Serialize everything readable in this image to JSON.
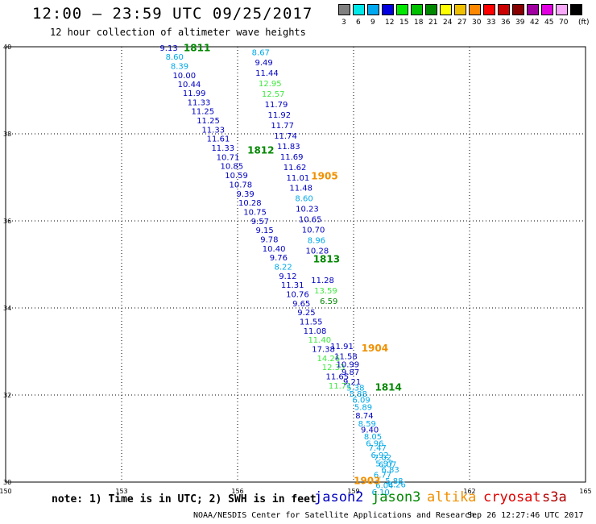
{
  "title": "12:00 – 23:59 UTC 09/25/2017",
  "subtitle": "12 hour collection of altimeter wave heights",
  "legend": {
    "unit": "(ft)",
    "bins": [
      {
        "label": "3",
        "color": "#808080"
      },
      {
        "label": "6",
        "color": "#00e8e8"
      },
      {
        "label": "9",
        "color": "#00a8f0"
      },
      {
        "label": "12",
        "color": "#0000e0"
      },
      {
        "label": "15",
        "color": "#00e800"
      },
      {
        "label": "18",
        "color": "#00c000"
      },
      {
        "label": "21",
        "color": "#008800"
      },
      {
        "label": "24",
        "color": "#ffff00"
      },
      {
        "label": "27",
        "color": "#f0c000"
      },
      {
        "label": "30",
        "color": "#ff8800"
      },
      {
        "label": "33",
        "color": "#ff0000"
      },
      {
        "label": "36",
        "color": "#cc0000"
      },
      {
        "label": "39",
        "color": "#880000"
      },
      {
        "label": "42",
        "color": "#a000a0"
      },
      {
        "label": "45",
        "color": "#e000e0"
      },
      {
        "label": "70",
        "color": "#f8a8f8"
      },
      {
        "label": "",
        "color": "#000000"
      }
    ]
  },
  "map": {
    "lon_range": [
      150,
      165
    ],
    "lat_range": [
      30,
      40
    ],
    "lon_ticks": [
      "150",
      "153",
      "156",
      "159",
      "162",
      "165"
    ],
    "lat_ticks": [
      "30",
      "32",
      "34",
      "36",
      "38",
      "40"
    ],
    "colors": {
      "jason2": "#0000c0",
      "jason3": "#008800",
      "altika": "#f09000",
      "cryosat": "#e00000",
      "s3a": "#b00000",
      "cyan": "#00a8e8",
      "lightgreen": "#40e840"
    },
    "pass_labels": [
      {
        "text": "1811",
        "lon": 154.95,
        "lat": 39.9,
        "color": "jason3"
      },
      {
        "text": "1812",
        "lon": 156.6,
        "lat": 37.55,
        "color": "jason3"
      },
      {
        "text": "1905",
        "lon": 158.25,
        "lat": 36.95,
        "color": "altika"
      },
      {
        "text": "1813",
        "lon": 158.3,
        "lat": 35.05,
        "color": "jason3"
      },
      {
        "text": "1904",
        "lon": 159.55,
        "lat": 33.0,
        "color": "altika"
      },
      {
        "text": "1814",
        "lon": 159.9,
        "lat": 32.1,
        "color": "jason3"
      },
      {
        "text": "1903",
        "lon": 159.35,
        "lat": 29.95,
        "color": "altika"
      }
    ],
    "observations": [
      {
        "v": "9.13",
        "lon": 154.22,
        "lat": 39.91,
        "c": "jason2"
      },
      {
        "v": "8.60",
        "lon": 154.37,
        "lat": 39.7,
        "c": "cyan"
      },
      {
        "v": "8.39",
        "lon": 154.5,
        "lat": 39.49,
        "c": "cyan"
      },
      {
        "v": "10.00",
        "lon": 154.62,
        "lat": 39.28,
        "c": "jason2"
      },
      {
        "v": "10.44",
        "lon": 154.75,
        "lat": 39.07,
        "c": "jason2"
      },
      {
        "v": "11.99",
        "lon": 154.88,
        "lat": 38.87,
        "c": "jason2"
      },
      {
        "v": "11.33",
        "lon": 155.0,
        "lat": 38.66,
        "c": "jason2"
      },
      {
        "v": "11.25",
        "lon": 155.1,
        "lat": 38.45,
        "c": "jason2"
      },
      {
        "v": "11.25",
        "lon": 155.24,
        "lat": 38.24,
        "c": "jason2"
      },
      {
        "v": "11.33",
        "lon": 155.37,
        "lat": 38.03,
        "c": "jason2"
      },
      {
        "v": "11.61",
        "lon": 155.5,
        "lat": 37.82,
        "c": "jason2"
      },
      {
        "v": "11.33",
        "lon": 155.62,
        "lat": 37.61,
        "c": "jason2"
      },
      {
        "v": "10.71",
        "lon": 155.75,
        "lat": 37.4,
        "c": "jason2"
      },
      {
        "v": "10.85",
        "lon": 155.85,
        "lat": 37.19,
        "c": "jason2"
      },
      {
        "v": "10.59",
        "lon": 155.97,
        "lat": 36.98,
        "c": "jason2"
      },
      {
        "v": "10.78",
        "lon": 156.08,
        "lat": 36.77,
        "c": "jason2"
      },
      {
        "v": "9.39",
        "lon": 156.2,
        "lat": 36.56,
        "c": "jason2"
      },
      {
        "v": "10.28",
        "lon": 156.32,
        "lat": 36.35,
        "c": "jason2"
      },
      {
        "v": "10.75",
        "lon": 156.45,
        "lat": 36.14,
        "c": "jason2"
      },
      {
        "v": "9.57",
        "lon": 156.58,
        "lat": 35.93,
        "c": "jason2"
      },
      {
        "v": "9.15",
        "lon": 156.7,
        "lat": 35.72,
        "c": "jason2"
      },
      {
        "v": "9.78",
        "lon": 156.82,
        "lat": 35.51,
        "c": "jason2"
      },
      {
        "v": "10.40",
        "lon": 156.94,
        "lat": 35.3,
        "c": "jason2"
      },
      {
        "v": "9.76",
        "lon": 157.06,
        "lat": 35.09,
        "c": "jason2"
      },
      {
        "v": "8.22",
        "lon": 157.18,
        "lat": 34.88,
        "c": "cyan"
      },
      {
        "v": "9.12",
        "lon": 157.3,
        "lat": 34.67,
        "c": "jason2"
      },
      {
        "v": "11.31",
        "lon": 157.42,
        "lat": 34.46,
        "c": "jason2"
      },
      {
        "v": "10.76",
        "lon": 157.55,
        "lat": 34.25,
        "c": "jason2"
      },
      {
        "v": "9.65",
        "lon": 157.65,
        "lat": 34.04,
        "c": "jason2"
      },
      {
        "v": "9.25",
        "lon": 157.78,
        "lat": 33.83,
        "c": "jason2"
      },
      {
        "v": "11.55",
        "lon": 157.9,
        "lat": 33.62,
        "c": "jason2"
      },
      {
        "v": "11.08",
        "lon": 158.0,
        "lat": 33.41,
        "c": "jason2"
      },
      {
        "v": "11.40",
        "lon": 158.12,
        "lat": 33.2,
        "c": "lightgreen"
      },
      {
        "v": "17.38",
        "lon": 158.22,
        "lat": 32.99,
        "c": "jason2"
      },
      {
        "v": "14.26",
        "lon": 158.35,
        "lat": 32.78,
        "c": "lightgreen"
      },
      {
        "v": "12.33",
        "lon": 158.48,
        "lat": 32.57,
        "c": "lightgreen"
      },
      {
        "v": "11.65",
        "lon": 158.58,
        "lat": 32.36,
        "c": "jason2"
      },
      {
        "v": "11.71",
        "lon": 158.65,
        "lat": 32.15,
        "c": "lightgreen"
      },
      {
        "v": "8.67",
        "lon": 156.6,
        "lat": 39.81,
        "c": "cyan"
      },
      {
        "v": "9.49",
        "lon": 156.68,
        "lat": 39.57,
        "c": "jason2"
      },
      {
        "v": "11.44",
        "lon": 156.76,
        "lat": 39.33,
        "c": "jason2"
      },
      {
        "v": "12.95",
        "lon": 156.84,
        "lat": 39.09,
        "c": "lightgreen"
      },
      {
        "v": "12.57",
        "lon": 156.92,
        "lat": 38.85,
        "c": "lightgreen"
      },
      {
        "v": "11.79",
        "lon": 157.0,
        "lat": 38.61,
        "c": "jason2"
      },
      {
        "v": "11.92",
        "lon": 157.08,
        "lat": 38.37,
        "c": "jason2"
      },
      {
        "v": "11.77",
        "lon": 157.16,
        "lat": 38.13,
        "c": "jason2"
      },
      {
        "v": "11.74",
        "lon": 157.24,
        "lat": 37.89,
        "c": "jason2"
      },
      {
        "v": "11.83",
        "lon": 157.32,
        "lat": 37.65,
        "c": "jason2"
      },
      {
        "v": "11.69",
        "lon": 157.4,
        "lat": 37.41,
        "c": "jason2"
      },
      {
        "v": "11.62",
        "lon": 157.48,
        "lat": 37.17,
        "c": "jason2"
      },
      {
        "v": "11.01",
        "lon": 157.56,
        "lat": 36.93,
        "c": "jason2"
      },
      {
        "v": "11.48",
        "lon": 157.64,
        "lat": 36.69,
        "c": "jason2"
      },
      {
        "v": "8.60",
        "lon": 157.72,
        "lat": 36.45,
        "c": "cyan"
      },
      {
        "v": "10.23",
        "lon": 157.8,
        "lat": 36.21,
        "c": "jason2"
      },
      {
        "v": "10.65",
        "lon": 157.88,
        "lat": 35.97,
        "c": "jason2"
      },
      {
        "v": "10.70",
        "lon": 157.96,
        "lat": 35.73,
        "c": "jason2"
      },
      {
        "v": "8.96",
        "lon": 158.04,
        "lat": 35.49,
        "c": "cyan"
      },
      {
        "v": "10.28",
        "lon": 158.06,
        "lat": 35.25,
        "c": "jason2"
      },
      {
        "v": "11.28",
        "lon": 158.2,
        "lat": 34.57,
        "c": "jason2"
      },
      {
        "v": "13.59",
        "lon": 158.28,
        "lat": 34.33,
        "c": "lightgreen"
      },
      {
        "v": "6.59",
        "lon": 158.36,
        "lat": 34.09,
        "c": "jason3"
      },
      {
        "v": "11.91",
        "lon": 158.7,
        "lat": 33.06,
        "c": "jason2"
      },
      {
        "v": "11.58",
        "lon": 158.8,
        "lat": 32.82,
        "c": "jason2"
      },
      {
        "v": "10.99",
        "lon": 158.85,
        "lat": 32.64,
        "c": "jason2"
      },
      {
        "v": "9.87",
        "lon": 158.92,
        "lat": 32.46,
        "c": "jason2"
      },
      {
        "v": "9.21",
        "lon": 158.96,
        "lat": 32.24,
        "c": "jason2"
      },
      {
        "v": "5.38",
        "lon": 159.05,
        "lat": 32.1,
        "c": "cyan"
      },
      {
        "v": "5.88",
        "lon": 159.12,
        "lat": 31.96,
        "c": "cyan"
      },
      {
        "v": "6.09",
        "lon": 159.2,
        "lat": 31.82,
        "c": "cyan"
      },
      {
        "v": "5.89",
        "lon": 159.25,
        "lat": 31.66,
        "c": "cyan"
      },
      {
        "v": "8.74",
        "lon": 159.28,
        "lat": 31.46,
        "c": "jason2"
      },
      {
        "v": "8.59",
        "lon": 159.35,
        "lat": 31.28,
        "c": "cyan"
      },
      {
        "v": "9.40",
        "lon": 159.42,
        "lat": 31.14,
        "c": "jason2"
      },
      {
        "v": "8.05",
        "lon": 159.5,
        "lat": 30.98,
        "c": "cyan"
      },
      {
        "v": "6.96",
        "lon": 159.55,
        "lat": 30.82,
        "c": "cyan"
      },
      {
        "v": "7.47",
        "lon": 159.62,
        "lat": 30.72,
        "c": "cyan"
      },
      {
        "v": "6.92",
        "lon": 159.68,
        "lat": 30.56,
        "c": "cyan"
      },
      {
        "v": "7.02",
        "lon": 159.75,
        "lat": 30.5,
        "c": "cyan"
      },
      {
        "v": "5.97",
        "lon": 159.8,
        "lat": 30.36,
        "c": "cyan"
      },
      {
        "v": "6.07",
        "lon": 159.88,
        "lat": 30.34,
        "c": "cyan"
      },
      {
        "v": "6.83",
        "lon": 159.95,
        "lat": 30.22,
        "c": "cyan"
      },
      {
        "v": "6.77",
        "lon": 159.75,
        "lat": 30.1,
        "c": "cyan"
      },
      {
        "v": "5.88",
        "lon": 160.05,
        "lat": 29.96,
        "c": "cyan"
      },
      {
        "v": "6.26",
        "lon": 160.12,
        "lat": 29.88,
        "c": "cyan"
      },
      {
        "v": "6.04",
        "lon": 159.8,
        "lat": 29.86,
        "c": "cyan"
      },
      {
        "v": "6.10",
        "lon": 159.7,
        "lat": 29.7,
        "c": "cyan"
      }
    ]
  },
  "footer": {
    "note": "note: 1) Time is in UTC; 2) SWH is in feet",
    "satellites": {
      "jason2": "jason2",
      "jason3": "jason3",
      "altika": "altika",
      "cryosat": "cryosat",
      "s3a": "s3a"
    },
    "credit": "NOAA/NESDIS Center for Satellite Applications and Research",
    "timestamp": "Sep 26 12:27:46 UTC 2017"
  }
}
